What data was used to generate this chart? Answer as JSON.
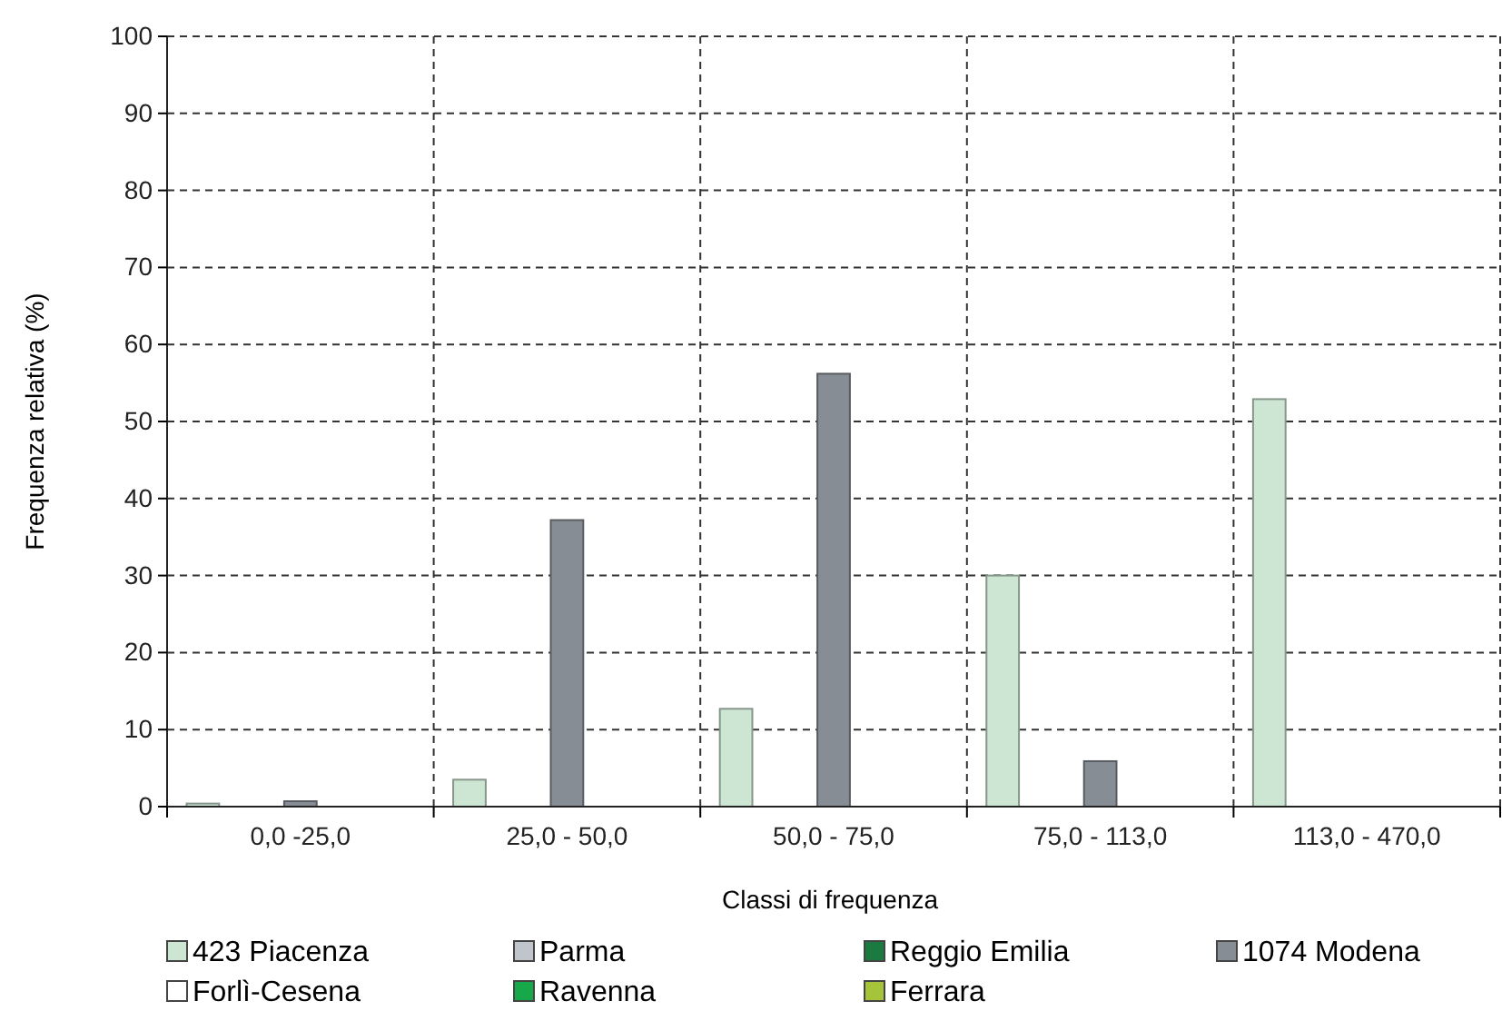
{
  "chart_data": {
    "type": "bar",
    "xlabel": "Classi di frequenza",
    "ylabel": "Frequenza relativa (%)",
    "categories": [
      "0,0 -25,0",
      "25,0 - 50,0",
      "50,0 - 75,0",
      "75,0 - 113,0",
      "113,0 - 470,0"
    ],
    "series": [
      {
        "name": "423 Piacenza",
        "color": "#cde6d4",
        "values": [
          0.4,
          3.5,
          12.7,
          30.0,
          52.9
        ]
      },
      {
        "name": "Parma",
        "color": "#c0c4cb",
        "values": [
          null,
          null,
          null,
          null,
          null
        ]
      },
      {
        "name": "Reggio Emilia",
        "color": "#1a7a40",
        "values": [
          null,
          null,
          null,
          null,
          null
        ]
      },
      {
        "name": "1074 Modena",
        "color": "#878d94",
        "values": [
          0.7,
          37.2,
          56.2,
          5.9,
          null
        ]
      },
      {
        "name": "Forlì-Cesena",
        "color": "#ffffff",
        "values": [
          null,
          null,
          null,
          null,
          null
        ]
      },
      {
        "name": "Ravenna",
        "color": "#17a84a",
        "values": [
          null,
          null,
          null,
          null,
          null
        ]
      },
      {
        "name": "Ferrara",
        "color": "#a6c43a",
        "values": [
          null,
          null,
          null,
          null,
          null
        ]
      }
    ],
    "ylim": [
      0,
      100
    ],
    "yticks": [
      0,
      10,
      20,
      30,
      40,
      50,
      60,
      70,
      80,
      90,
      100
    ],
    "grid": true,
    "legend": "bottom"
  }
}
